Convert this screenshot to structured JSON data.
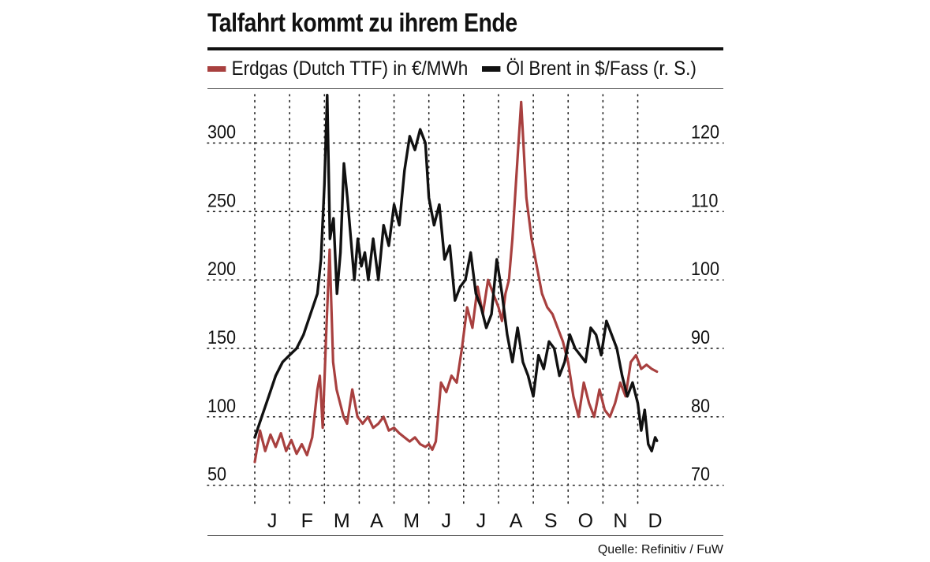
{
  "chart_data": {
    "type": "line",
    "title": "Talfahrt kommt zu ihrem Ende",
    "source": "Quelle: Refinitiv / FuW",
    "x_tick_labels": [
      "J",
      "F",
      "M",
      "A",
      "M",
      "J",
      "J",
      "A",
      "S",
      "O",
      "N",
      "D"
    ],
    "x_range": [
      0,
      11.6
    ],
    "y_left": {
      "ticks": [
        "300",
        "250",
        "200",
        "150",
        "100",
        "50"
      ],
      "range": [
        40,
        340
      ]
    },
    "y_right": {
      "ticks": [
        "120",
        "110",
        "100",
        "90",
        "80",
        "70"
      ],
      "range": [
        68,
        128
      ]
    },
    "grid": true,
    "series": [
      {
        "name": "Erdgas (Dutch TTF) in €/MWh",
        "axis": "left",
        "color": "#a8403f",
        "x": [
          0.0,
          0.15,
          0.3,
          0.45,
          0.6,
          0.75,
          0.9,
          1.05,
          1.2,
          1.35,
          1.5,
          1.65,
          1.8,
          1.87,
          1.95,
          2.05,
          2.15,
          2.25,
          2.35,
          2.45,
          2.55,
          2.65,
          2.8,
          2.95,
          3.1,
          3.25,
          3.4,
          3.55,
          3.7,
          3.85,
          4.0,
          4.15,
          4.3,
          4.45,
          4.6,
          4.75,
          4.9,
          5.0,
          5.1,
          5.2,
          5.35,
          5.5,
          5.65,
          5.8,
          5.95,
          6.1,
          6.25,
          6.4,
          6.55,
          6.7,
          6.85,
          7.0,
          7.1,
          7.2,
          7.3,
          7.4,
          7.5,
          7.65,
          7.8,
          7.95,
          8.1,
          8.25,
          8.4,
          8.55,
          8.7,
          8.85,
          9.0,
          9.15,
          9.3,
          9.45,
          9.6,
          9.75,
          9.9,
          10.05,
          10.2,
          10.35,
          10.5,
          10.65,
          10.8,
          10.95,
          11.1,
          11.25,
          11.4,
          11.55
        ],
        "values": [
          67,
          90,
          75,
          87,
          78,
          88,
          75,
          83,
          73,
          80,
          72,
          85,
          120,
          130,
          92,
          160,
          222,
          140,
          120,
          110,
          100,
          95,
          120,
          100,
          95,
          100,
          92,
          95,
          100,
          90,
          92,
          88,
          85,
          82,
          85,
          80,
          78,
          80,
          76,
          82,
          125,
          118,
          130,
          125,
          150,
          180,
          165,
          195,
          175,
          200,
          190,
          180,
          170,
          190,
          200,
          230,
          270,
          330,
          260,
          230,
          210,
          190,
          180,
          175,
          165,
          155,
          140,
          115,
          100,
          125,
          110,
          100,
          120,
          105,
          100,
          110,
          125,
          115,
          140,
          145,
          135,
          138,
          135,
          133
        ]
      },
      {
        "name": "Öl Brent in $/Fass (r. S.)",
        "axis": "right",
        "color": "#111111",
        "x": [
          0.0,
          0.2,
          0.4,
          0.6,
          0.8,
          1.0,
          1.2,
          1.4,
          1.6,
          1.8,
          1.9,
          2.0,
          2.08,
          2.16,
          2.26,
          2.36,
          2.46,
          2.56,
          2.66,
          2.76,
          2.86,
          2.96,
          3.06,
          3.16,
          3.26,
          3.4,
          3.55,
          3.7,
          3.85,
          4.0,
          4.15,
          4.3,
          4.45,
          4.6,
          4.75,
          4.9,
          5.0,
          5.15,
          5.3,
          5.45,
          5.6,
          5.75,
          5.9,
          6.05,
          6.2,
          6.35,
          6.5,
          6.65,
          6.8,
          6.95,
          7.1,
          7.25,
          7.4,
          7.55,
          7.7,
          7.85,
          8.0,
          8.15,
          8.3,
          8.45,
          8.6,
          8.75,
          8.9,
          9.05,
          9.2,
          9.35,
          9.5,
          9.65,
          9.8,
          9.95,
          10.1,
          10.25,
          10.4,
          10.55,
          10.7,
          10.85,
          11.0,
          11.1,
          11.2,
          11.3,
          11.4,
          11.5,
          11.55
        ],
        "values": [
          77,
          80,
          83,
          86,
          88,
          89,
          90,
          92,
          95,
          98,
          103,
          114,
          127,
          106,
          109,
          98,
          104,
          117,
          112,
          106,
          100,
          106,
          102,
          104,
          100,
          106,
          100,
          108,
          105,
          111,
          108,
          116,
          121,
          119,
          122,
          120,
          112,
          108,
          111,
          103,
          105,
          97,
          99,
          100,
          104,
          98,
          96,
          93,
          95,
          103,
          98,
          92,
          88,
          93,
          88,
          86,
          83,
          89,
          87,
          91,
          90,
          86,
          88,
          92,
          90,
          89,
          88,
          93,
          92,
          89,
          94,
          92,
          90,
          86,
          83,
          85,
          82,
          78,
          81,
          76,
          75,
          77,
          76.5
        ]
      }
    ]
  }
}
